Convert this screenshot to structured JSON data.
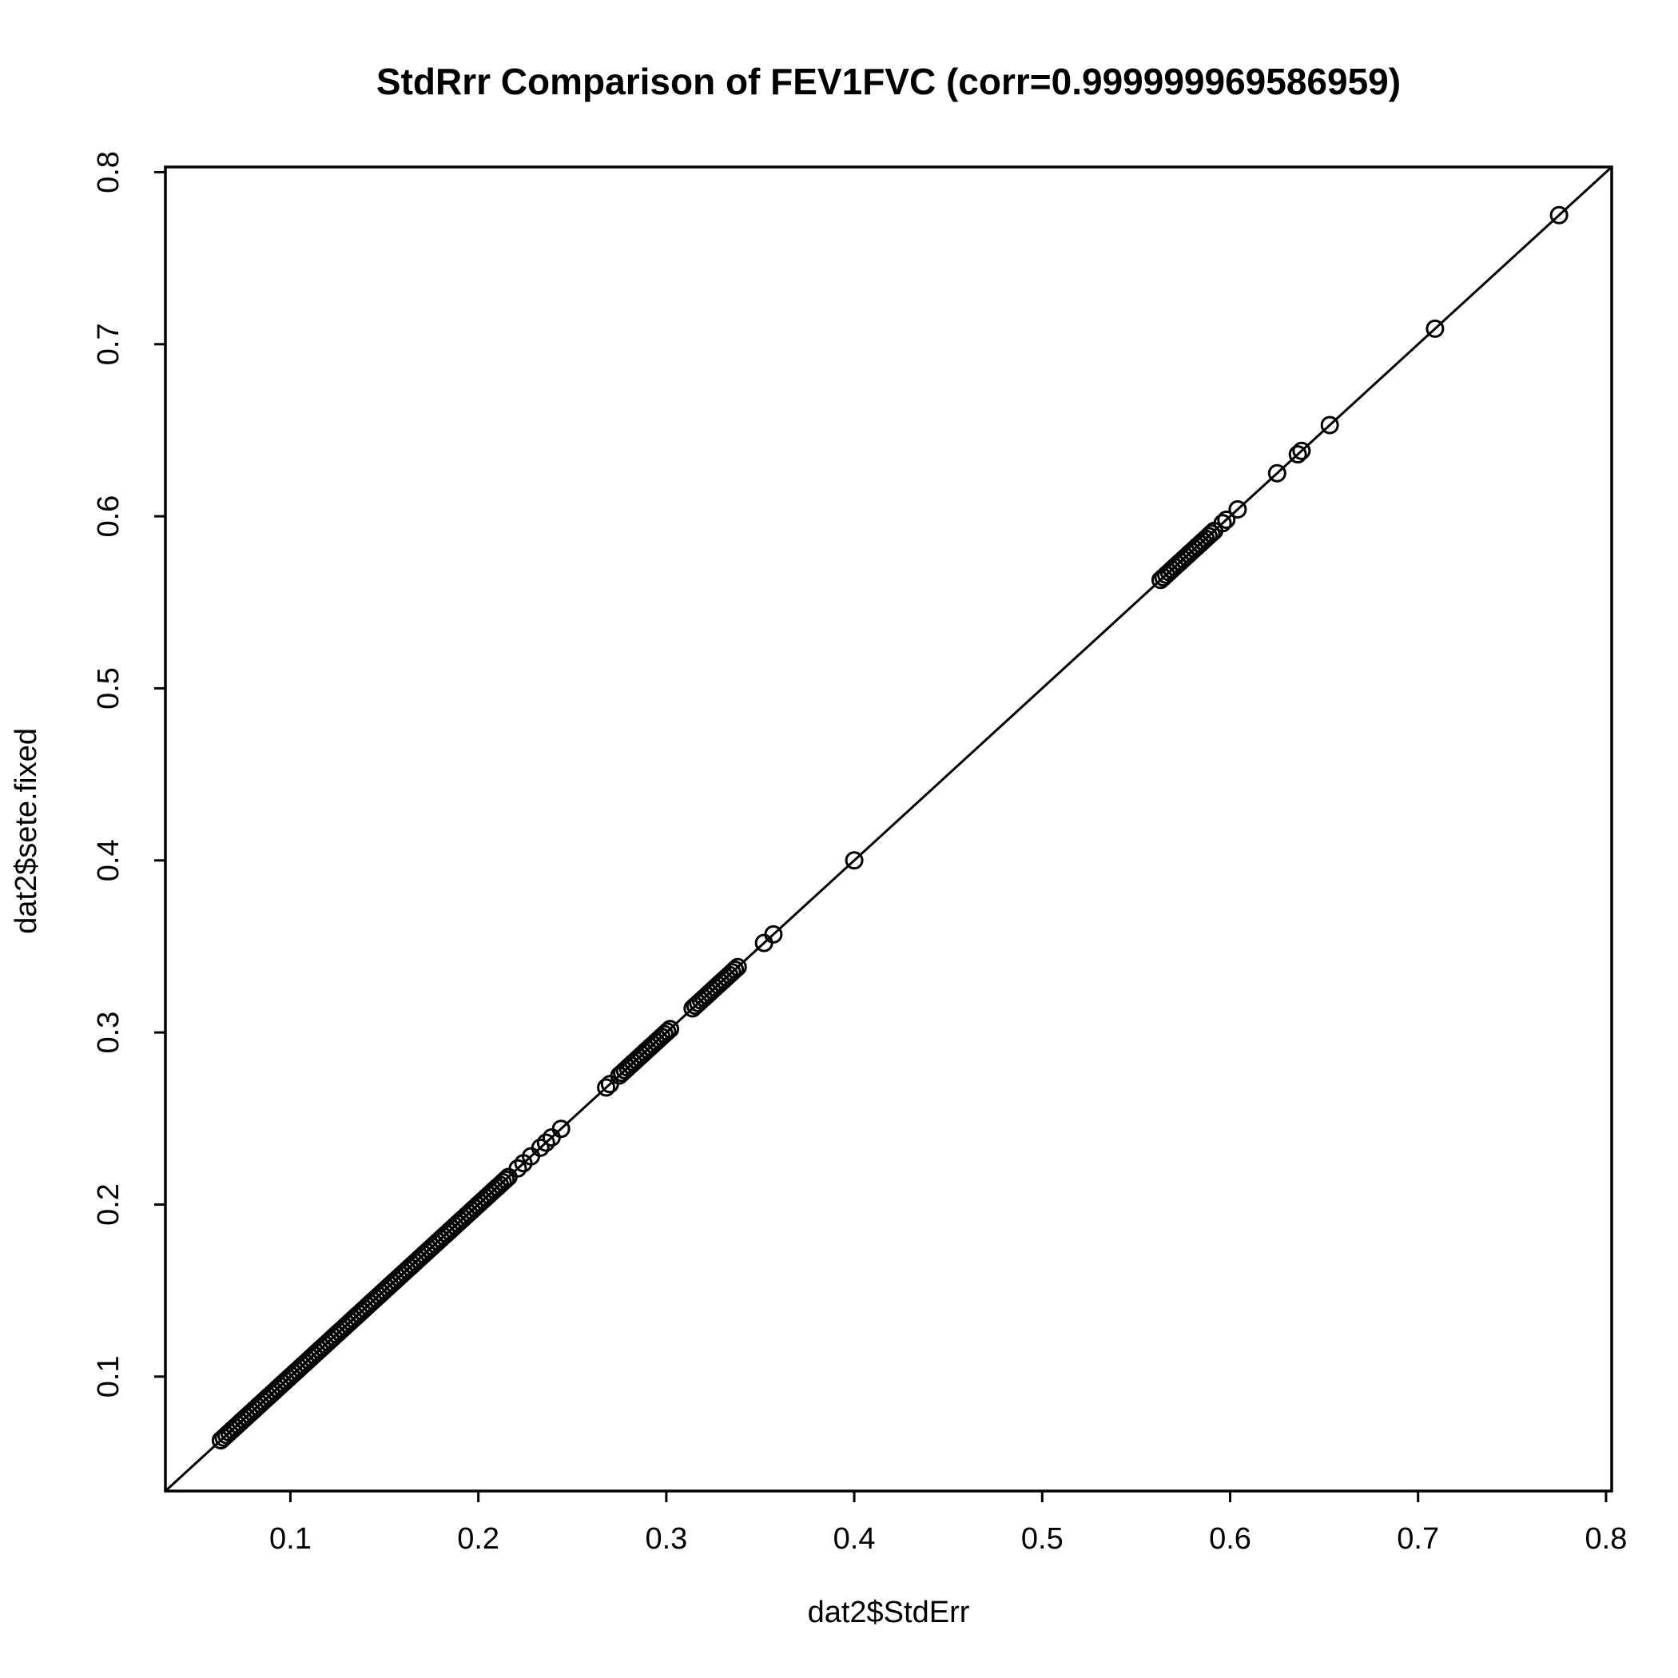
{
  "chart_data": {
    "type": "scatter",
    "title": "StdRrr Comparison of FEV1FVC (corr=0.999999969586959)",
    "xlabel": "dat2$StdErr",
    "ylabel": "dat2$sete.fixed",
    "xlim": [
      0.0335,
      0.803
    ],
    "ylim": [
      0.0335,
      0.803
    ],
    "xticks": [
      "0.1",
      "0.2",
      "0.3",
      "0.4",
      "0.5",
      "0.6",
      "0.7",
      "0.8"
    ],
    "yticks": [
      "0.1",
      "0.2",
      "0.3",
      "0.4",
      "0.5",
      "0.6",
      "0.7",
      "0.8"
    ],
    "reference_line": {
      "intercept": 0,
      "slope": 1
    },
    "grid": false,
    "dense_runs": [
      {
        "from": 0.063,
        "to": 0.216,
        "step": 0.0015
      },
      {
        "from": 0.275,
        "to": 0.302,
        "step": 0.0015
      },
      {
        "from": 0.314,
        "to": 0.338,
        "step": 0.0015
      },
      {
        "from": 0.563,
        "to": 0.592,
        "step": 0.0015
      }
    ],
    "points": [
      0.221,
      0.224,
      0.228,
      0.233,
      0.236,
      0.239,
      0.244,
      0.268,
      0.27,
      0.352,
      0.357,
      0.4,
      0.596,
      0.598,
      0.604,
      0.625,
      0.636,
      0.638,
      0.653,
      0.709,
      0.775
    ]
  }
}
